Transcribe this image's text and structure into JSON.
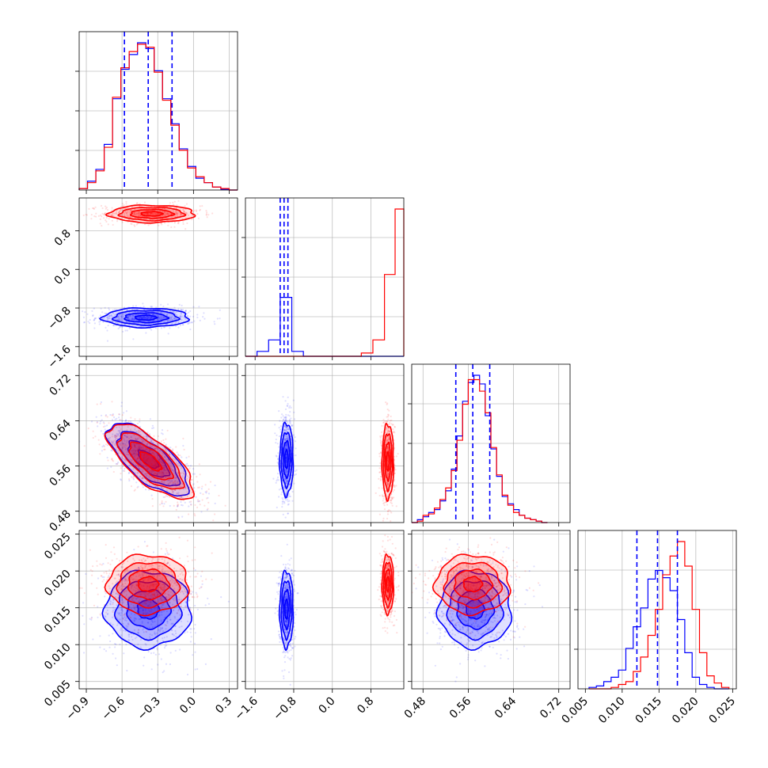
{
  "chart_data": {
    "type": "corner",
    "title": "",
    "colors": {
      "series_a": "#0000ff",
      "series_b": "#ff0000"
    },
    "parameters": [
      {
        "ticks": [
          -0.9,
          -0.6,
          -0.3,
          0.0,
          0.3
        ],
        "tick_labels": [
          "−0.9",
          "−0.6",
          "−0.3",
          "0.0",
          "0.3"
        ],
        "range": [
          -0.96,
          0.37
        ],
        "quantiles_a": [
          -0.58,
          -0.38,
          -0.18
        ]
      },
      {
        "ticks": [
          -1.6,
          -0.8,
          0.0,
          0.8
        ],
        "tick_labels": [
          "−1.6",
          "−0.8",
          "0.0",
          "0.8"
        ],
        "range": [
          -1.8,
          1.48
        ],
        "quantiles_a": [
          -1.08,
          -1.0,
          -0.92
        ]
      },
      {
        "ticks": [
          0.48,
          0.56,
          0.64,
          0.72
        ],
        "tick_labels": [
          "0.48",
          "0.56",
          "0.64",
          "0.72"
        ],
        "range": [
          0.46,
          0.74
        ],
        "quantiles_a": [
          0.538,
          0.568,
          0.598
        ]
      },
      {
        "ticks": [
          0.005,
          0.01,
          0.015,
          0.02,
          0.025
        ],
        "tick_labels": [
          "0.005",
          "0.010",
          "0.015",
          "0.020",
          "0.025"
        ],
        "range": [
          0.004,
          0.0255
        ],
        "quantiles_a": [
          0.012,
          0.0148,
          0.0175
        ]
      }
    ],
    "histograms": [
      {
        "edges": [
          -0.96,
          -0.89,
          -0.82,
          -0.75,
          -0.68,
          -0.61,
          -0.54,
          -0.47,
          -0.4,
          -0.33,
          -0.26,
          -0.19,
          -0.12,
          -0.05,
          0.02,
          0.09,
          0.16,
          0.23,
          0.3,
          0.37
        ],
        "series_a": [
          0.01,
          0.06,
          0.14,
          0.31,
          0.62,
          0.82,
          0.92,
          1.0,
          0.96,
          0.81,
          0.62,
          0.45,
          0.28,
          0.16,
          0.08,
          0.05,
          0.02,
          0.005,
          0.0
        ],
        "series_b": [
          0.01,
          0.05,
          0.13,
          0.29,
          0.63,
          0.83,
          0.94,
          0.99,
          0.97,
          0.8,
          0.61,
          0.44,
          0.27,
          0.15,
          0.09,
          0.05,
          0.02,
          0.01,
          0.0
        ]
      },
      {
        "edges": [
          -1.8,
          -1.56,
          -1.32,
          -1.08,
          -0.84,
          -0.6,
          -0.36,
          -0.12,
          0.12,
          0.36,
          0.6,
          0.84,
          1.08,
          1.3,
          1.48
        ],
        "series_a": [
          0.0,
          0.03,
          0.1,
          0.36,
          0.03,
          0.0,
          0.0,
          0.0,
          0.0,
          0.0,
          0.0,
          0.0,
          0.0,
          0.0
        ],
        "series_b": [
          0.0,
          0.0,
          0.0,
          0.0,
          0.0,
          0.0,
          0.0,
          0.0,
          0.0,
          0.0,
          0.02,
          0.1,
          0.5,
          0.9
        ]
      },
      {
        "edges": [
          0.46,
          0.47,
          0.48,
          0.49,
          0.5,
          0.51,
          0.52,
          0.53,
          0.54,
          0.55,
          0.56,
          0.57,
          0.58,
          0.59,
          0.6,
          0.61,
          0.62,
          0.63,
          0.64,
          0.65,
          0.66,
          0.67,
          0.68,
          0.69,
          0.7
        ],
        "series_a": [
          0.0,
          0.02,
          0.04,
          0.07,
          0.09,
          0.15,
          0.22,
          0.37,
          0.6,
          0.84,
          0.97,
          1.02,
          0.96,
          0.74,
          0.51,
          0.32,
          0.18,
          0.13,
          0.09,
          0.05,
          0.03,
          0.02,
          0.01,
          0.0
        ],
        "series_b": [
          0.0,
          0.01,
          0.05,
          0.06,
          0.1,
          0.16,
          0.24,
          0.36,
          0.57,
          0.82,
          0.99,
          0.99,
          0.91,
          0.76,
          0.52,
          0.33,
          0.19,
          0.12,
          0.07,
          0.05,
          0.03,
          0.02,
          0.01,
          0.0
        ]
      },
      {
        "edges": [
          0.0055,
          0.0065,
          0.0075,
          0.0085,
          0.0095,
          0.0105,
          0.0115,
          0.0125,
          0.0135,
          0.0145,
          0.0155,
          0.0165,
          0.0175,
          0.0185,
          0.0195,
          0.0205,
          0.0215,
          0.0225,
          0.0235,
          0.0245
        ],
        "series_a": [
          0.01,
          0.02,
          0.05,
          0.08,
          0.13,
          0.28,
          0.43,
          0.56,
          0.76,
          0.82,
          0.77,
          0.68,
          0.48,
          0.25,
          0.08,
          0.03,
          0.01,
          0.0,
          0.0
        ],
        "series_b": [
          0.0,
          0.0,
          0.0,
          0.01,
          0.03,
          0.05,
          0.12,
          0.22,
          0.37,
          0.55,
          0.79,
          0.92,
          1.02,
          0.85,
          0.55,
          0.25,
          0.09,
          0.04,
          0.01
        ]
      }
    ],
    "distributions_2d": [
      {
        "row": 1,
        "col": 0,
        "series_a": {
          "mean": [
            -0.4,
            -1.0
          ],
          "sd": [
            0.18,
            0.1
          ],
          "rho": 0.0
        },
        "series_b": {
          "mean": [
            -0.35,
            1.15
          ],
          "sd": [
            0.18,
            0.09
          ],
          "rho": 0.0
        }
      },
      {
        "row": 2,
        "col": 0,
        "series_a": {
          "mean": [
            -0.38,
            0.572
          ],
          "sd": [
            0.17,
            0.032
          ],
          "rho": -0.72
        },
        "series_b": {
          "mean": [
            -0.36,
            0.568
          ],
          "sd": [
            0.18,
            0.033
          ],
          "rho": -0.72
        }
      },
      {
        "row": 2,
        "col": 1,
        "series_a": {
          "mean": [
            -0.95,
            0.572
          ],
          "sd": [
            0.07,
            0.032
          ],
          "rho": 0.0
        },
        "series_b": {
          "mean": [
            1.15,
            0.568
          ],
          "sd": [
            0.06,
            0.033
          ],
          "rho": 0.0
        }
      },
      {
        "row": 3,
        "col": 0,
        "series_a": {
          "mean": [
            -0.38,
            0.0148
          ],
          "sd": [
            0.18,
            0.0026
          ],
          "rho": 0.0
        },
        "series_b": {
          "mean": [
            -0.38,
            0.0182
          ],
          "sd": [
            0.17,
            0.002
          ],
          "rho": 0.0
        }
      },
      {
        "row": 3,
        "col": 1,
        "series_a": {
          "mean": [
            -0.95,
            0.0148
          ],
          "sd": [
            0.07,
            0.0026
          ],
          "rho": 0.0
        },
        "series_b": {
          "mean": [
            1.15,
            0.0182
          ],
          "sd": [
            0.06,
            0.002
          ],
          "rho": 0.0
        }
      },
      {
        "row": 3,
        "col": 2,
        "series_a": {
          "mean": [
            0.572,
            0.0148
          ],
          "sd": [
            0.032,
            0.0026
          ],
          "rho": 0.0
        },
        "series_b": {
          "mean": [
            0.568,
            0.0182
          ],
          "sd": [
            0.033,
            0.002
          ],
          "rho": 0.0
        }
      }
    ]
  }
}
